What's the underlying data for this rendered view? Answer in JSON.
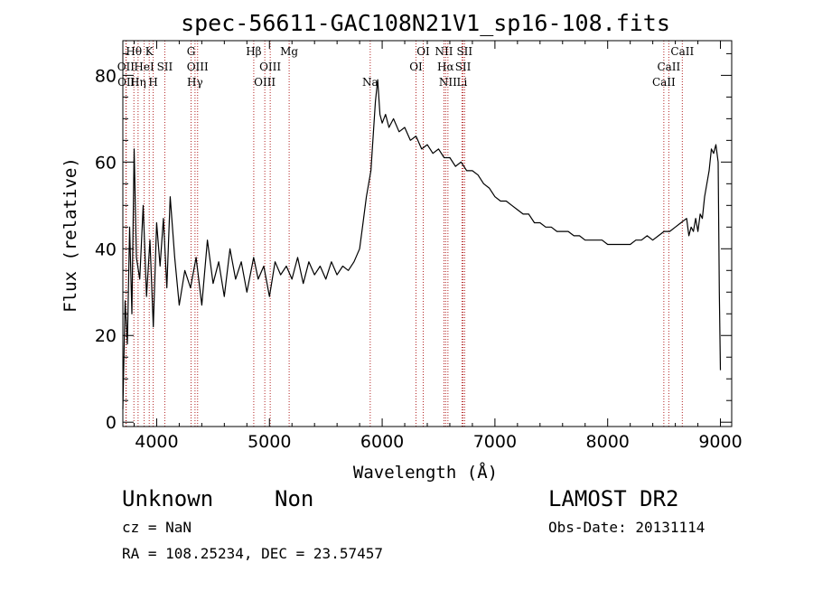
{
  "chart_data": {
    "type": "line",
    "title": "spec-56611-GAC108N21V1_sp16-108.fits",
    "xlabel": "Wavelength (Å)",
    "ylabel": "Flux (relative)",
    "xlim": [
      3700,
      9100
    ],
    "ylim": [
      -1,
      88
    ],
    "xticks": [
      4000,
      5000,
      6000,
      7000,
      8000,
      9000
    ],
    "xtick_labels": [
      "4000",
      "5000",
      "6000",
      "7000",
      "8000",
      "9000"
    ],
    "yticks": [
      0,
      20,
      40,
      60,
      80
    ],
    "ytick_labels": [
      "0",
      "20",
      "40",
      "60",
      "80"
    ],
    "grid": false,
    "series_color": "#000000",
    "line_marker_color": "#b22222",
    "series": [
      {
        "x": [
          3700,
          3720,
          3740,
          3760,
          3780,
          3800,
          3820,
          3850,
          3880,
          3910,
          3940,
          3970,
          4000,
          4030,
          4060,
          4090,
          4120,
          4160,
          4200,
          4250,
          4300,
          4350,
          4400,
          4450,
          4500,
          4550,
          4600,
          4650,
          4700,
          4750,
          4800,
          4860,
          4900,
          4950,
          5000,
          5050,
          5100,
          5150,
          5200,
          5250,
          5300,
          5350,
          5400,
          5450,
          5500,
          5550,
          5600,
          5650,
          5700,
          5750,
          5800,
          5830,
          5860,
          5880,
          5900,
          5920,
          5940,
          5960,
          5980,
          6000,
          6030,
          6060,
          6100,
          6150,
          6200,
          6250,
          6300,
          6350,
          6400,
          6450,
          6500,
          6550,
          6600,
          6650,
          6700,
          6750,
          6800,
          6850,
          6900,
          6950,
          7000,
          7050,
          7100,
          7150,
          7200,
          7250,
          7300,
          7350,
          7400,
          7450,
          7500,
          7550,
          7600,
          7650,
          7700,
          7750,
          7800,
          7850,
          7900,
          7950,
          8000,
          8050,
          8100,
          8150,
          8200,
          8250,
          8300,
          8350,
          8400,
          8450,
          8500,
          8550,
          8600,
          8650,
          8700,
          8720,
          8740,
          8760,
          8780,
          8800,
          8820,
          8840,
          8860,
          8880,
          8900,
          8920,
          8940,
          8960,
          8980,
          8990,
          9000
        ],
        "y": [
          3,
          28,
          18,
          45,
          25,
          63,
          38,
          33,
          50,
          29,
          42,
          22,
          46,
          36,
          47,
          31,
          52,
          38,
          27,
          35,
          31,
          38,
          27,
          42,
          32,
          37,
          29,
          40,
          33,
          37,
          30,
          38,
          33,
          36,
          29,
          37,
          34,
          36,
          33,
          38,
          32,
          37,
          34,
          36,
          33,
          37,
          34,
          36,
          35,
          37,
          40,
          46,
          52,
          55,
          58,
          66,
          74,
          79,
          71,
          69,
          71,
          68,
          70,
          67,
          68,
          65,
          66,
          63,
          64,
          62,
          63,
          61,
          61,
          59,
          60,
          58,
          58,
          57,
          55,
          54,
          52,
          51,
          51,
          50,
          49,
          48,
          48,
          46,
          46,
          45,
          45,
          44,
          44,
          44,
          43,
          43,
          42,
          42,
          42,
          42,
          41,
          41,
          41,
          41,
          41,
          42,
          42,
          43,
          42,
          43,
          44,
          44,
          45,
          46,
          47,
          43,
          45,
          44,
          47,
          44,
          48,
          47,
          52,
          55,
          58,
          63,
          62,
          64,
          60,
          30,
          12
        ]
      }
    ],
    "spectral_lines": [
      {
        "label": "Hθ",
        "x": 3798,
        "row": 1
      },
      {
        "label": "OII",
        "x": 3727,
        "row": 2
      },
      {
        "label": "OII",
        "x": 3730,
        "row": 3
      },
      {
        "label": "Hη",
        "x": 3835,
        "row": 3
      },
      {
        "label": "K",
        "x": 3934,
        "row": 1
      },
      {
        "label": "HeI",
        "x": 3889,
        "row": 2
      },
      {
        "label": "H",
        "x": 3969,
        "row": 3
      },
      {
        "label": "SII",
        "x": 4072,
        "row": 2
      },
      {
        "label": "G",
        "x": 4305,
        "row": 1
      },
      {
        "label": "OIII",
        "x": 4363,
        "row": 2
      },
      {
        "label": "Hγ",
        "x": 4340,
        "row": 3
      },
      {
        "label": "Hβ",
        "x": 4861,
        "row": 1
      },
      {
        "label": "OIII",
        "x": 5007,
        "row": 2
      },
      {
        "label": "OIII",
        "x": 4959,
        "row": 3
      },
      {
        "label": "Mg",
        "x": 5175,
        "row": 1
      },
      {
        "label": "Na",
        "x": 5894,
        "row": 3
      },
      {
        "label": "OI",
        "x": 6364,
        "row": 1
      },
      {
        "label": "OI",
        "x": 6300,
        "row": 2
      },
      {
        "label": "NII",
        "x": 6548,
        "row": 1
      },
      {
        "label": "Hα",
        "x": 6563,
        "row": 2
      },
      {
        "label": "NII",
        "x": 6583,
        "row": 3
      },
      {
        "label": "SII",
        "x": 6731,
        "row": 1
      },
      {
        "label": "SII",
        "x": 6717,
        "row": 2
      },
      {
        "label": "Li",
        "x": 6708,
        "row": 3
      },
      {
        "label": "CaII",
        "x": 8662,
        "row": 1
      },
      {
        "label": "CaII",
        "x": 8542,
        "row": 2
      },
      {
        "label": "CaII",
        "x": 8498,
        "row": 3
      }
    ]
  },
  "info": {
    "class": "Unknown",
    "subclass": "Non",
    "survey": "LAMOST DR2",
    "cz": "cz = NaN",
    "obs_date": "Obs-Date: 20131114",
    "radec": "RA = 108.25234, DEC =  23.57457"
  }
}
